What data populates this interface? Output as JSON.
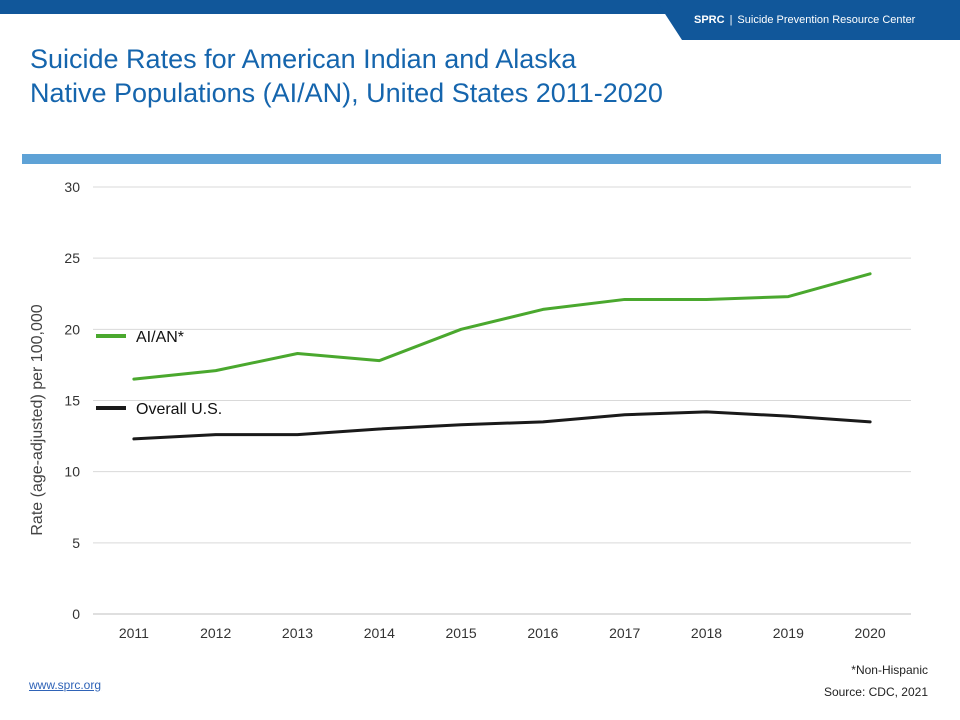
{
  "header": {
    "brand_abbr": "SPRC",
    "brand_separator": "|",
    "brand_name": "Suicide Prevention Resource Center"
  },
  "title_lines": [
    "Suicide Rates for American Indian and Alaska",
    "Native Populations (AI/AN), United States 2011-2020"
  ],
  "colors": {
    "brand_blue": "#11579a",
    "title_blue": "#1565ad",
    "divider_blue": "#5ea2d6",
    "aian_green": "#4aa82e",
    "overall_black": "#1a1a1a"
  },
  "chart_data": {
    "type": "line",
    "x": [
      "2011",
      "2012",
      "2013",
      "2014",
      "2015",
      "2016",
      "2017",
      "2018",
      "2019",
      "2020"
    ],
    "series": [
      {
        "name": "AI/AN*",
        "color": "#4aa82e",
        "values": [
          16.5,
          17.1,
          18.3,
          17.8,
          20.0,
          21.4,
          22.1,
          22.1,
          22.3,
          23.9
        ]
      },
      {
        "name": "Overall U.S.",
        "color": "#1a1a1a",
        "values": [
          12.3,
          12.6,
          12.6,
          13.0,
          13.3,
          13.5,
          14.0,
          14.2,
          13.9,
          13.5
        ]
      }
    ],
    "ylabel": "Rate (age-adjusted) per 100,000",
    "xlabel": "",
    "ylim": [
      0,
      30
    ],
    "yticks": [
      0,
      5,
      10,
      15,
      20,
      25,
      30
    ],
    "grid": true,
    "legend_placement": "left"
  },
  "footer": {
    "link": "www.sprc.org",
    "note": "*Non-Hispanic",
    "source": "Source: CDC, 2021"
  }
}
